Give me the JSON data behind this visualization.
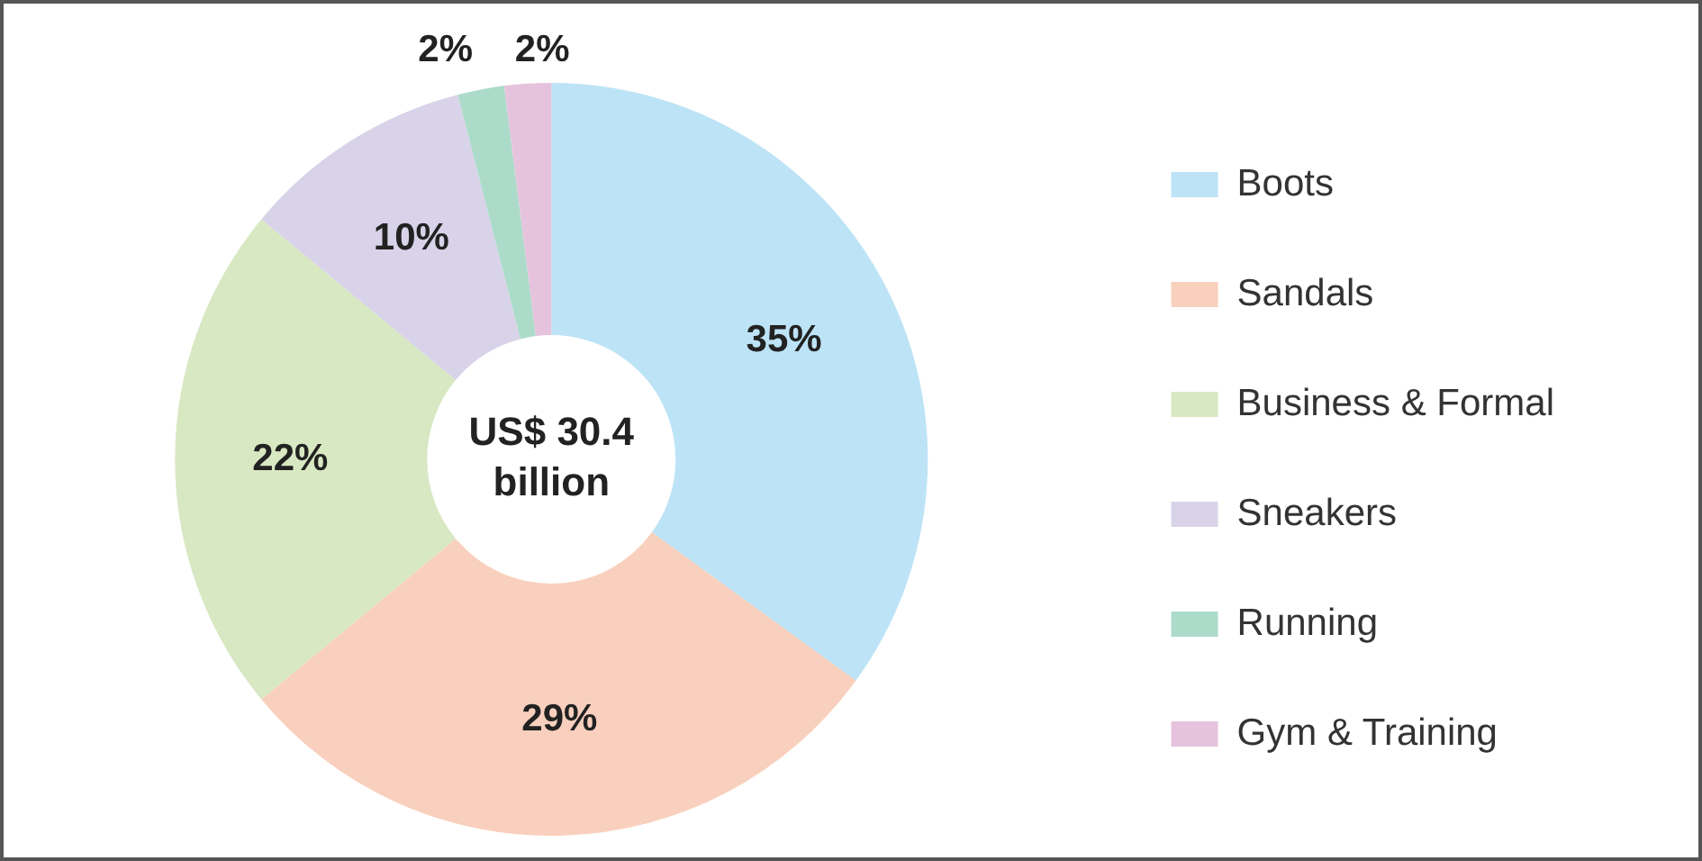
{
  "chart_data": {
    "type": "donut",
    "categories": [
      "Boots",
      "Sandals",
      "Business & Formal",
      "Sneakers",
      "Running",
      "Gym & Training"
    ],
    "values": [
      35,
      29,
      22,
      10,
      2,
      2
    ],
    "colors": [
      "#bde3f6",
      "#f9d0bd",
      "#d8e8c2",
      "#d8d3e8",
      "#acdbca",
      "#e6c3dd"
    ],
    "value_labels": [
      "35%",
      "29%",
      "22%",
      "10%",
      "2%",
      "2%"
    ],
    "legend": "right",
    "annotations": [
      "US$ 30.4 billion"
    ]
  }
}
